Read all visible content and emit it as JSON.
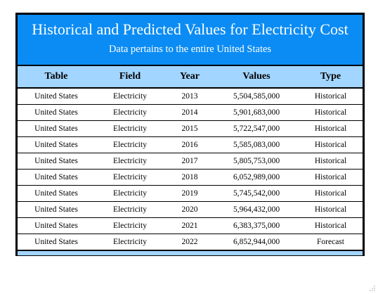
{
  "table": {
    "title": "Historical and Predicted Values for Electricity Cost",
    "subtitle": "Data pertains to the entire United States",
    "headers": [
      "Table",
      "Field",
      "Year",
      "Values",
      "Type"
    ],
    "rows": [
      [
        "United States",
        "Electricity",
        "2013",
        "5,504,585,000",
        "Historical"
      ],
      [
        "United States",
        "Electricity",
        "2014",
        "5,901,683,000",
        "Historical"
      ],
      [
        "United States",
        "Electricity",
        "2015",
        "5,722,547,000",
        "Historical"
      ],
      [
        "United States",
        "Electricity",
        "2016",
        "5,585,083,000",
        "Historical"
      ],
      [
        "United States",
        "Electricity",
        "2017",
        "5,805,753,000",
        "Historical"
      ],
      [
        "United States",
        "Electricity",
        "2018",
        "6,052,989,000",
        "Historical"
      ],
      [
        "United States",
        "Electricity",
        "2019",
        "5,745,542,000",
        "Historical"
      ],
      [
        "United States",
        "Electricity",
        "2020",
        "5,964,432,000",
        "Historical"
      ],
      [
        "United States",
        "Electricity",
        "2021",
        "6,383,375,000",
        "Historical"
      ],
      [
        "United States",
        "Electricity",
        "2022",
        "6,852,944,000",
        "Forecast"
      ]
    ]
  },
  "colors": {
    "title_band": "#0b8cf4",
    "header_band": "#a2d5ff",
    "border": "#000000"
  }
}
